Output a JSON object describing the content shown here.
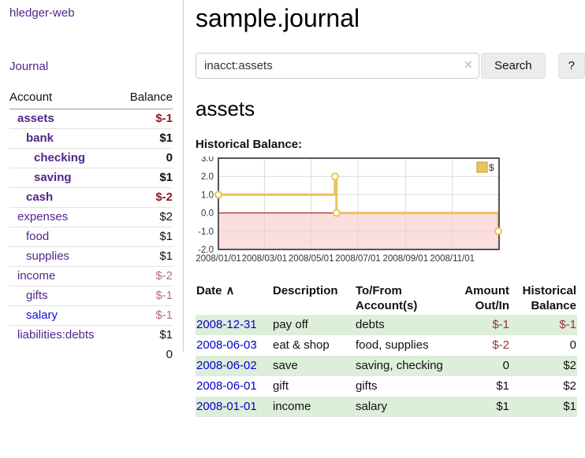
{
  "app": {
    "title": "hledger-web"
  },
  "sidebar": {
    "journal_link": "Journal",
    "accounts": {
      "header_account": "Account",
      "header_balance": "Balance",
      "rows": [
        {
          "account": "assets",
          "balance": "$-1",
          "level": 1,
          "bold": true
        },
        {
          "account": "bank",
          "balance": "$1",
          "level": 2,
          "bold": true
        },
        {
          "account": "checking",
          "balance": "0",
          "level": 3,
          "bold": true
        },
        {
          "account": "saving",
          "balance": "$1",
          "level": 3,
          "bold": true
        },
        {
          "account": "cash",
          "balance": "$-2",
          "level": 2,
          "bold": true
        },
        {
          "account": "expenses",
          "balance": "$2",
          "level": 1
        },
        {
          "account": "food",
          "balance": "$1",
          "level": 2
        },
        {
          "account": "supplies",
          "balance": "$1",
          "level": 2
        },
        {
          "account": "income",
          "balance": "$-2",
          "level": 1
        },
        {
          "account": "gifts",
          "balance": "$-1",
          "level": 2
        },
        {
          "account": "salary",
          "balance": "$-1",
          "level": 2,
          "unvisited_link": true
        },
        {
          "account": "liabilities:debts",
          "balance": "$1",
          "level": 1
        }
      ],
      "total": "0"
    }
  },
  "main": {
    "title": "sample.journal",
    "search": {
      "value": "inacct:assets",
      "clear_icon": "×",
      "search_button": "Search",
      "help_button": "?"
    },
    "account_heading": "assets",
    "chart_label": "Historical Balance:",
    "register": {
      "headers": {
        "date": "Date",
        "sort_icon": "∧",
        "description": "Description",
        "accounts": "To/From Account(s)",
        "amount": "Amount Out/In",
        "balance": "Historical Balance"
      },
      "rows": [
        {
          "date": "2008-12-31",
          "description": "pay off",
          "accounts": "debts",
          "amount": "$-1",
          "balance": "$-1"
        },
        {
          "date": "2008-06-03",
          "description": "eat & shop",
          "accounts": "food, supplies",
          "amount": "$-2",
          "balance": "0"
        },
        {
          "date": "2008-06-02",
          "description": "save",
          "accounts": "saving, checking",
          "amount": "0",
          "balance": "$2"
        },
        {
          "date": "2008-06-01",
          "description": "gift",
          "accounts": "gifts",
          "amount": "$1",
          "balance": "$2"
        },
        {
          "date": "2008-01-01",
          "description": "income",
          "accounts": "salary",
          "amount": "$1",
          "balance": "$1"
        }
      ]
    }
  },
  "chart_data": {
    "type": "line",
    "step": true,
    "title": "Historical Balance:",
    "series": [
      {
        "name": "$",
        "points": [
          {
            "date": "2008-01-01",
            "value": 1
          },
          {
            "date": "2008-06-01",
            "value": 2
          },
          {
            "date": "2008-06-03",
            "value": 0
          },
          {
            "date": "2008-12-31",
            "value": -1
          }
        ]
      }
    ],
    "x_domain": [
      "2008-01-01",
      "2009-01-01"
    ],
    "x_tick_labels": [
      "2008/01/01",
      "2008/03/01",
      "2008/05/01",
      "2008/07/01",
      "2008/09/01",
      "2008/11/01"
    ],
    "y_ticks": [
      "3.0",
      "2.0",
      "1.0",
      "0.0",
      "-1.0",
      "-2.0"
    ],
    "ylim": [
      -2,
      3
    ],
    "legend": {
      "label": "$",
      "position": "top-right"
    },
    "grid": true,
    "colors": {
      "line": "#e9c45a",
      "marker_fill": "#ffffff",
      "negative_region": "#fcdede",
      "zero_line": "#8b0000",
      "grid_line": "#d9d9d9",
      "border": "#555555"
    }
  }
}
